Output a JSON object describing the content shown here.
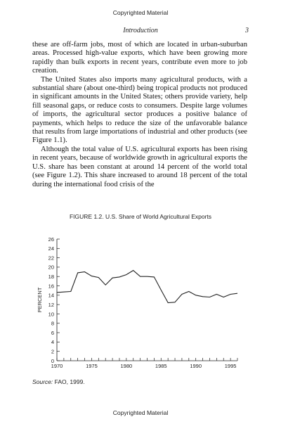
{
  "page": {
    "copyright_top": "Copyrighted Material",
    "copyright_bottom": "Copyrighted Material",
    "running_head": "Introduction",
    "page_number": "3"
  },
  "body": {
    "paragraphs": [
      "these are off-farm jobs, most of which are located in urban-suburban areas. Processed high-value exports, which have been growing more rapidly than bulk exports in recent years, contribute even more to job creation.",
      "The United States also imports many agricultural products, with a substantial share (about one-third) being tropical products not produced in significant amounts in the United States; others provide variety, help fill seasonal gaps, or reduce costs to consumers. Despite large volumes of imports, the agricultural sector produces a positive balance of payments, which helps to reduce the size of the unfavorable balance that results from large importations of industrial and other products (see Figure 1.1).",
      "Although the total value of U.S. agricultural exports has been rising in recent years, because of worldwide growth in agricultural exports the U.S. share has been constant at around 14 percent of the world total (see Figure 1.2). This share increased to around 18 percent of the total during the international food crisis of the"
    ]
  },
  "figure": {
    "caption": "FIGURE 1.2. U.S. Share of World Agricultural Exports",
    "source_label": "Source:",
    "source_text": " FAO, 1999."
  },
  "chart_data": {
    "type": "line",
    "title": "",
    "xlabel": "",
    "ylabel": "PERCENT",
    "xlim": [
      1970,
      1996
    ],
    "ylim": [
      0,
      26
    ],
    "x_ticks": [
      1970,
      1975,
      1980,
      1985,
      1990,
      1995
    ],
    "y_ticks": [
      0,
      2,
      4,
      6,
      8,
      10,
      12,
      14,
      16,
      18,
      20,
      22,
      24,
      26
    ],
    "grid": false,
    "x": [
      1970,
      1971,
      1972,
      1973,
      1974,
      1975,
      1976,
      1977,
      1978,
      1979,
      1980,
      1981,
      1982,
      1983,
      1984,
      1985,
      1986,
      1987,
      1988,
      1989,
      1990,
      1991,
      1992,
      1993,
      1994,
      1995,
      1996
    ],
    "series": [
      {
        "values": [
          14.6,
          14.7,
          14.8,
          18.8,
          19.0,
          18.1,
          17.8,
          16.2,
          17.7,
          17.9,
          18.4,
          19.3,
          18.0,
          18.0,
          17.9,
          15.1,
          12.4,
          12.5,
          14.2,
          14.8,
          14.0,
          13.7,
          13.6,
          14.2,
          13.6,
          14.2,
          14.4
        ],
        "color": "#222222"
      }
    ]
  }
}
